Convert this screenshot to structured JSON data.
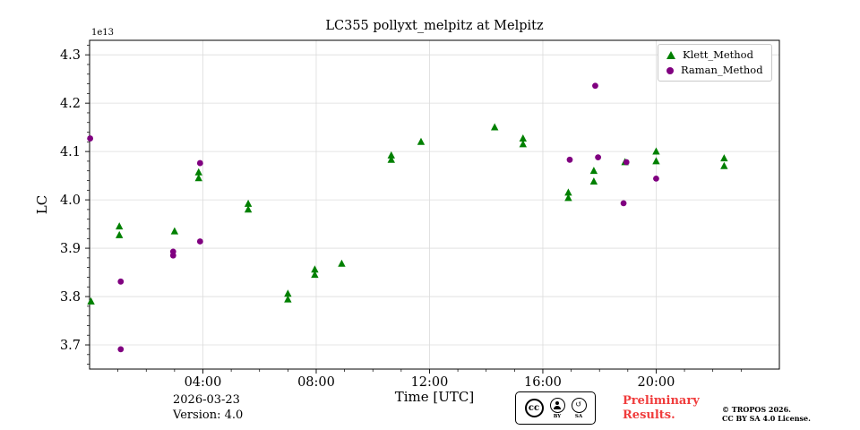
{
  "title": "LC355 pollyxt_melpitz at Melpitz",
  "footer": {
    "date": "2026-03-23",
    "version": "Version: 4.0",
    "preliminary_line1": "Preliminary",
    "preliminary_line2": "Results.",
    "preliminary_color": "#f03c3c",
    "copyright_line1": "© TROPOS 2026.",
    "copyright_line2": "CC BY SA 4.0 License."
  },
  "cc_badge": {
    "cc_label": "cc",
    "by_label": "BY",
    "sa_label": "SA",
    "sa_icon": "↺"
  },
  "chart_data": {
    "type": "scatter",
    "title": "LC355 pollyxt_melpitz at Melpitz",
    "xlabel": "Time [UTC]",
    "ylabel": "LC",
    "y_offset_label": "1e13",
    "xlim_hours": [
      0,
      24.35
    ],
    "ylim": [
      3.65,
      4.33
    ],
    "yticks": [
      3.7,
      3.8,
      3.9,
      4.0,
      4.1,
      4.2,
      4.3
    ],
    "xticks_hours": [
      4,
      8,
      12,
      16,
      20
    ],
    "xtick_labels": [
      "04:00",
      "08:00",
      "12:00",
      "16:00",
      "20:00"
    ],
    "grid": true,
    "legend_position": "upper right",
    "series": [
      {
        "name": "Klett_Method",
        "marker": "triangle",
        "color": "#008000",
        "points": [
          [
            0.05,
            3.79
          ],
          [
            1.05,
            3.945
          ],
          [
            1.05,
            3.927
          ],
          [
            3.0,
            3.935
          ],
          [
            3.85,
            4.057
          ],
          [
            3.85,
            4.045
          ],
          [
            5.6,
            3.992
          ],
          [
            5.6,
            3.98
          ],
          [
            7.0,
            3.806
          ],
          [
            7.0,
            3.794
          ],
          [
            7.95,
            3.856
          ],
          [
            7.95,
            3.845
          ],
          [
            8.9,
            3.868
          ],
          [
            10.65,
            4.092
          ],
          [
            10.65,
            4.083
          ],
          [
            11.7,
            4.12
          ],
          [
            14.3,
            4.15
          ],
          [
            15.3,
            4.127
          ],
          [
            15.3,
            4.115
          ],
          [
            16.9,
            4.015
          ],
          [
            16.9,
            4.004
          ],
          [
            17.8,
            4.06
          ],
          [
            17.8,
            4.038
          ],
          [
            18.9,
            4.078
          ],
          [
            20.0,
            4.1
          ],
          [
            20.0,
            4.08
          ],
          [
            22.4,
            4.086
          ],
          [
            22.4,
            4.07
          ]
        ]
      },
      {
        "name": "Raman_Method",
        "marker": "circle",
        "color": "#800080",
        "points": [
          [
            0.02,
            4.127
          ],
          [
            1.1,
            3.831
          ],
          [
            1.1,
            3.691
          ],
          [
            2.95,
            3.893
          ],
          [
            2.95,
            3.885
          ],
          [
            3.9,
            4.076
          ],
          [
            3.9,
            3.914
          ],
          [
            16.95,
            4.083
          ],
          [
            17.85,
            4.236
          ],
          [
            17.95,
            4.088
          ],
          [
            18.85,
            3.993
          ],
          [
            18.95,
            4.078
          ],
          [
            20.0,
            4.044
          ]
        ]
      }
    ]
  }
}
